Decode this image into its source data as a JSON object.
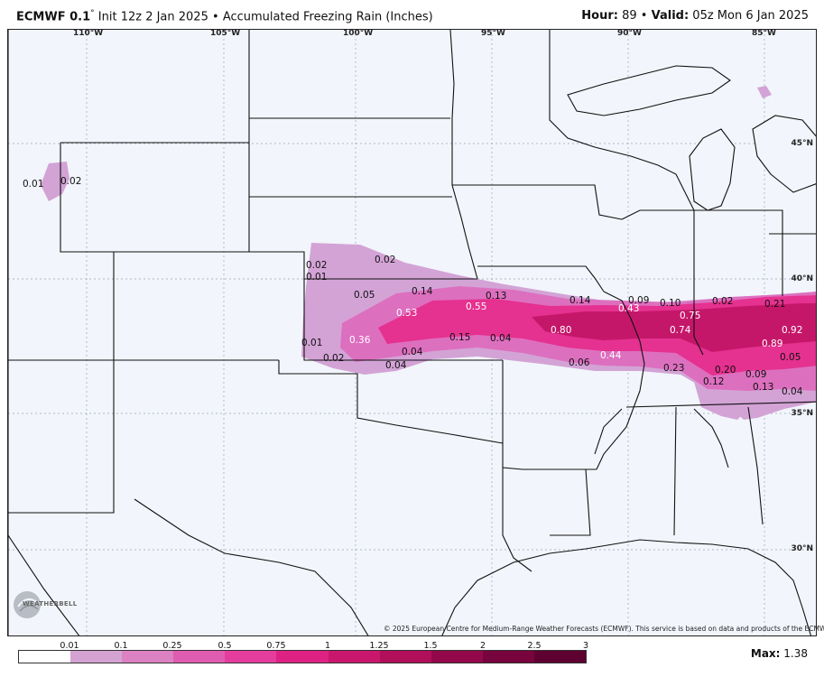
{
  "header": {
    "model": "ECMWF 0.1",
    "degree": "°",
    "init": "Init 12z 2 Jan 2025",
    "bullet": "•",
    "product": "Accumulated Freezing Rain (Inches)",
    "hour_label": "Hour:",
    "hour_value": "89",
    "valid_label": "Valid:",
    "valid_value": "05z Mon 6 Jan 2025"
  },
  "map": {
    "lon_labels": [
      "110°W",
      "105°W",
      "100°W",
      "95°W",
      "90°W",
      "85°W"
    ],
    "lat_labels": [
      "45°N",
      "40°N",
      "35°N",
      "30°N"
    ],
    "values": [
      {
        "text": "0.01",
        "color": "k"
      },
      {
        "text": "0.02",
        "color": "k"
      },
      {
        "text": "0.02",
        "color": "k"
      },
      {
        "text": "0.02",
        "color": "k"
      },
      {
        "text": "0.01",
        "color": "k"
      },
      {
        "text": "0.05",
        "color": "k"
      },
      {
        "text": "0.14",
        "color": "k"
      },
      {
        "text": "0.13",
        "color": "k"
      },
      {
        "text": "0.53",
        "color": "w"
      },
      {
        "text": "0.55",
        "color": "w"
      },
      {
        "text": "0.36",
        "color": "w"
      },
      {
        "text": "0.15",
        "color": "k"
      },
      {
        "text": "0.04",
        "color": "k"
      },
      {
        "text": "0.04",
        "color": "k"
      },
      {
        "text": "0.04",
        "color": "k"
      },
      {
        "text": "0.01",
        "color": "k"
      },
      {
        "text": "0.02",
        "color": "k"
      },
      {
        "text": "0.14",
        "color": "k"
      },
      {
        "text": "0.80",
        "color": "w"
      },
      {
        "text": "0.06",
        "color": "k"
      },
      {
        "text": "0.44",
        "color": "w"
      },
      {
        "text": "0.09",
        "color": "k"
      },
      {
        "text": "0.43",
        "color": "w"
      },
      {
        "text": "0.10",
        "color": "k"
      },
      {
        "text": "0.75",
        "color": "w"
      },
      {
        "text": "0.74",
        "color": "w"
      },
      {
        "text": "0.02",
        "color": "k"
      },
      {
        "text": "0.21",
        "color": "k"
      },
      {
        "text": "0.92",
        "color": "w"
      },
      {
        "text": "0.89",
        "color": "w"
      },
      {
        "text": "0.05",
        "color": "k"
      },
      {
        "text": "0.23",
        "color": "k"
      },
      {
        "text": "0.20",
        "color": "k"
      },
      {
        "text": "0.09",
        "color": "k"
      },
      {
        "text": "0.12",
        "color": "k"
      },
      {
        "text": "0.13",
        "color": "k"
      },
      {
        "text": "0.04",
        "color": "k"
      }
    ],
    "copyright": "© 2025 European Centre for Medium-Range Weather Forecasts (ECMWF). This service is based on data and products of the ECMWF.",
    "logo_text": "WEATHERBELL"
  },
  "legend": {
    "ticks": [
      "0.01",
      "0.1",
      "0.25",
      "0.5",
      "0.75",
      "1",
      "1.25",
      "1.5",
      "2",
      "2.5",
      "3"
    ],
    "colors": [
      "#ffffff",
      "#d4a3d2",
      "#dc82c2",
      "#e05cb0",
      "#e43d9e",
      "#de2283",
      "#c9176d",
      "#b10f5a",
      "#93084b",
      "#77043d",
      "#5e0130"
    ],
    "max_label": "Max:",
    "max_value": "1.38"
  },
  "colors": {
    "map_background": "#f2f5fb",
    "light_band": "#d3a3d6",
    "medium_band": "#dd6fbf",
    "strong_band": "#e5318f",
    "core_band": "#c5176a"
  }
}
